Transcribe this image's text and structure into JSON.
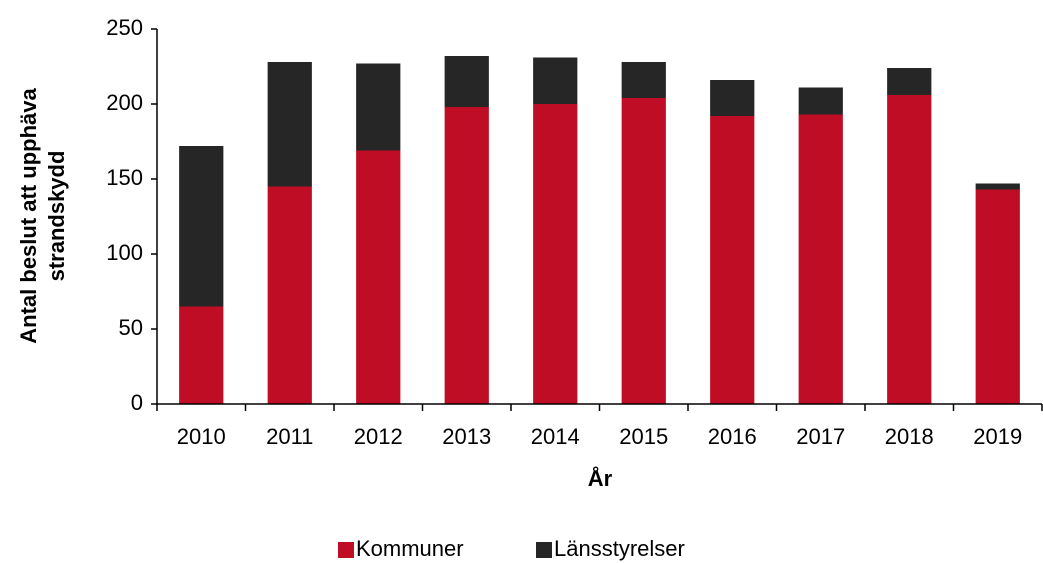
{
  "chart_data": {
    "type": "stacked_bar",
    "ylabel": [
      "Antal beslut att upphäva",
      "strandskydd"
    ],
    "xlabel": "År",
    "categories": [
      "2010",
      "2011",
      "2012",
      "2013",
      "2014",
      "2015",
      "2016",
      "2017",
      "2018",
      "2019"
    ],
    "series": [
      {
        "name": "Kommuner",
        "color": "#c00d26",
        "values": [
          65,
          145,
          169,
          198,
          200,
          204,
          192,
          193,
          206,
          143
        ]
      },
      {
        "name": "Länsstyrelser",
        "color": "#262626",
        "values": [
          107,
          83,
          58,
          34,
          31,
          24,
          24,
          18,
          18,
          4
        ]
      }
    ],
    "ylim": [
      0,
      250
    ],
    "yticks": [
      0,
      50,
      100,
      150,
      200,
      250
    ],
    "legend": "bottom"
  }
}
